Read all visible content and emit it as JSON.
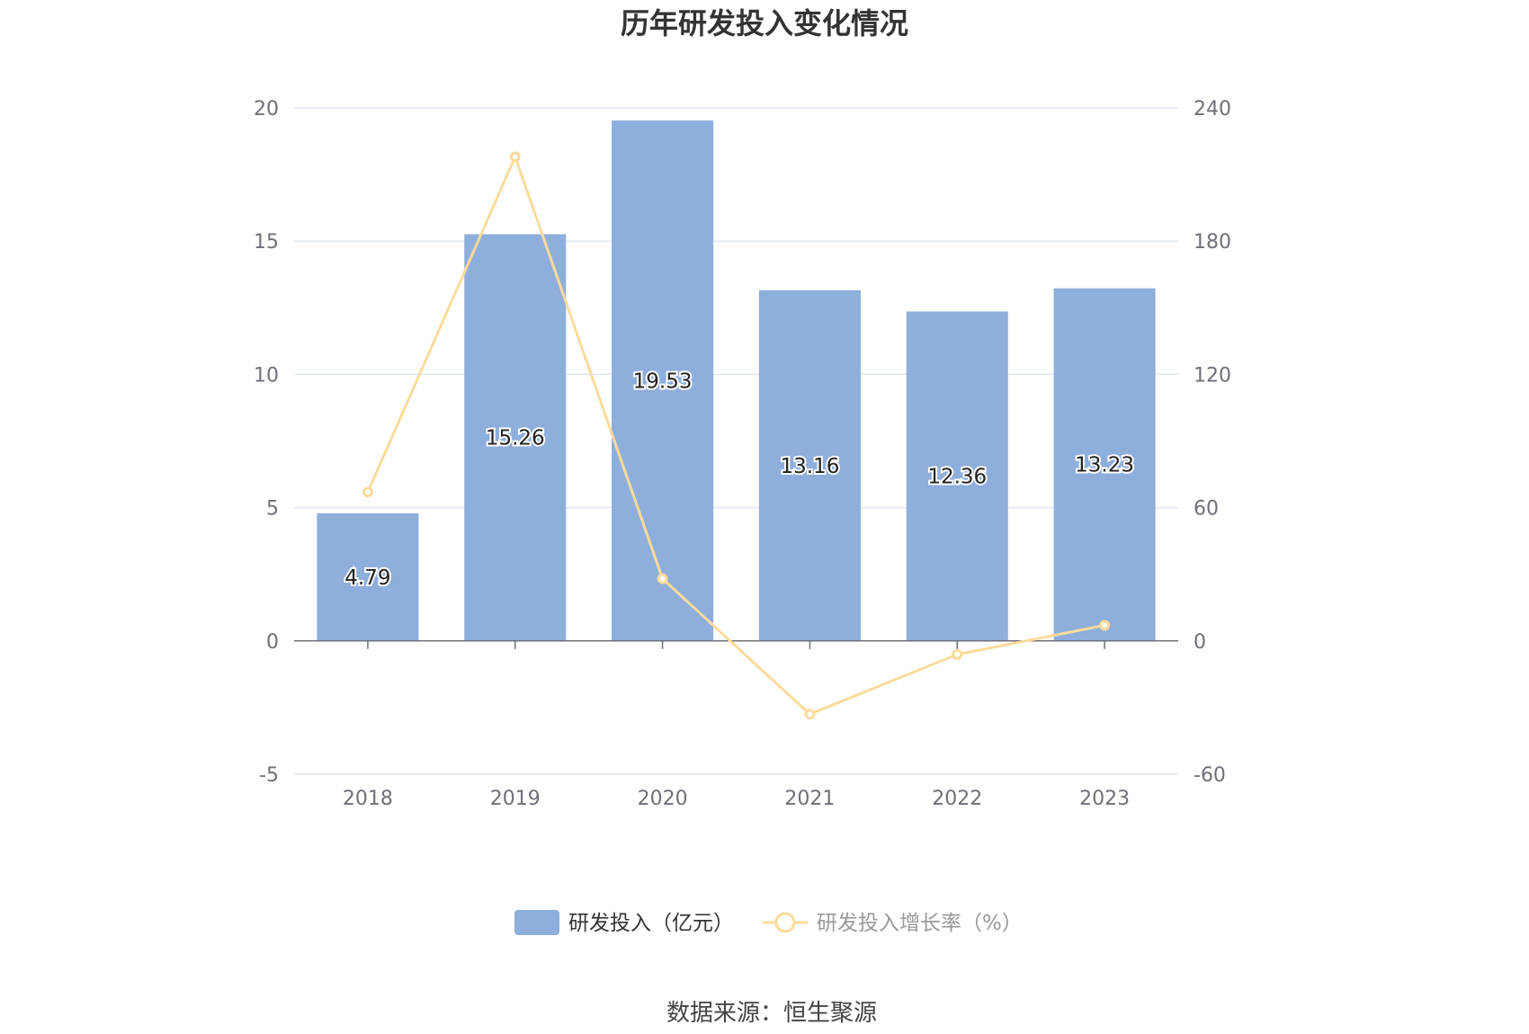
{
  "chart_data": {
    "type": "bar",
    "title": "历年研发投入变化情况",
    "categories": [
      "2018",
      "2019",
      "2020",
      "2021",
      "2022",
      "2023"
    ],
    "series": [
      {
        "name": "研发投入（亿元）",
        "type": "bar",
        "axis": "left",
        "values": [
          4.79,
          15.26,
          19.53,
          13.16,
          12.36,
          13.23
        ],
        "labels": [
          "4.79",
          "15.26",
          "19.53",
          "13.16",
          "12.36",
          "13.23"
        ],
        "color": "#8eaedb"
      },
      {
        "name": "研发投入增长率（%）",
        "type": "line",
        "axis": "right",
        "values": [
          67,
          218,
          28,
          -33,
          -6.1,
          7
        ],
        "color": "#fcdb9c"
      }
    ],
    "y_left": {
      "min": -5,
      "max": 20,
      "ticks": [
        "-5",
        "0",
        "5",
        "10",
        "15",
        "20"
      ]
    },
    "y_right": {
      "min": -60,
      "max": 240,
      "ticks": [
        "-60",
        "0",
        "60",
        "120",
        "180",
        "240"
      ]
    },
    "grid": true,
    "legend_position": "bottom"
  },
  "source": "数据来源：恒生聚源",
  "colors": {
    "axis": "#6e7079",
    "grid": "#e0e6f1"
  }
}
